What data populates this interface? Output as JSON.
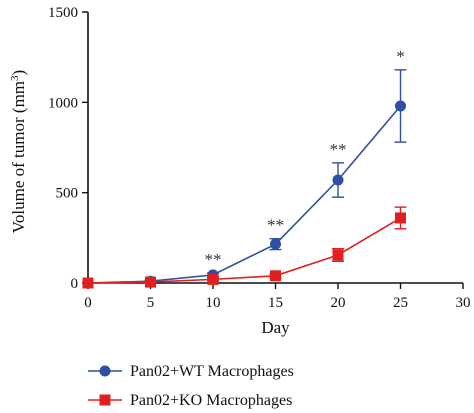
{
  "chart_data": {
    "type": "line",
    "xlabel": "Day",
    "ylabel": "Volume of tumor (mm",
    "ylabel_sup": "3",
    "ylabel_close": ")",
    "xlim": [
      0,
      30
    ],
    "ylim": [
      0,
      1500
    ],
    "xticks": [
      0,
      5,
      10,
      15,
      20,
      25,
      30
    ],
    "yticks": [
      0,
      500,
      1000,
      1500
    ],
    "grid": false,
    "legend_position": "bottom",
    "series": [
      {
        "name": "Pan02+WT Macrophages",
        "color": "#2e4fa3",
        "marker": "circle",
        "x": [
          0,
          5,
          10,
          15,
          20,
          25
        ],
        "y": [
          0,
          10,
          45,
          215,
          570,
          980
        ],
        "err": [
          0,
          5,
          10,
          30,
          95,
          200
        ]
      },
      {
        "name": "Pan02+KO Macrophages",
        "color": "#e02020",
        "marker": "square",
        "x": [
          0,
          5,
          10,
          15,
          20,
          25
        ],
        "y": [
          0,
          5,
          20,
          40,
          155,
          360
        ],
        "err": [
          0,
          4,
          8,
          10,
          35,
          60
        ]
      }
    ],
    "annotations": [
      {
        "x": 10,
        "text": "**"
      },
      {
        "x": 15,
        "text": "**"
      },
      {
        "x": 20,
        "text": "**"
      },
      {
        "x": 25,
        "text": "*"
      }
    ]
  }
}
